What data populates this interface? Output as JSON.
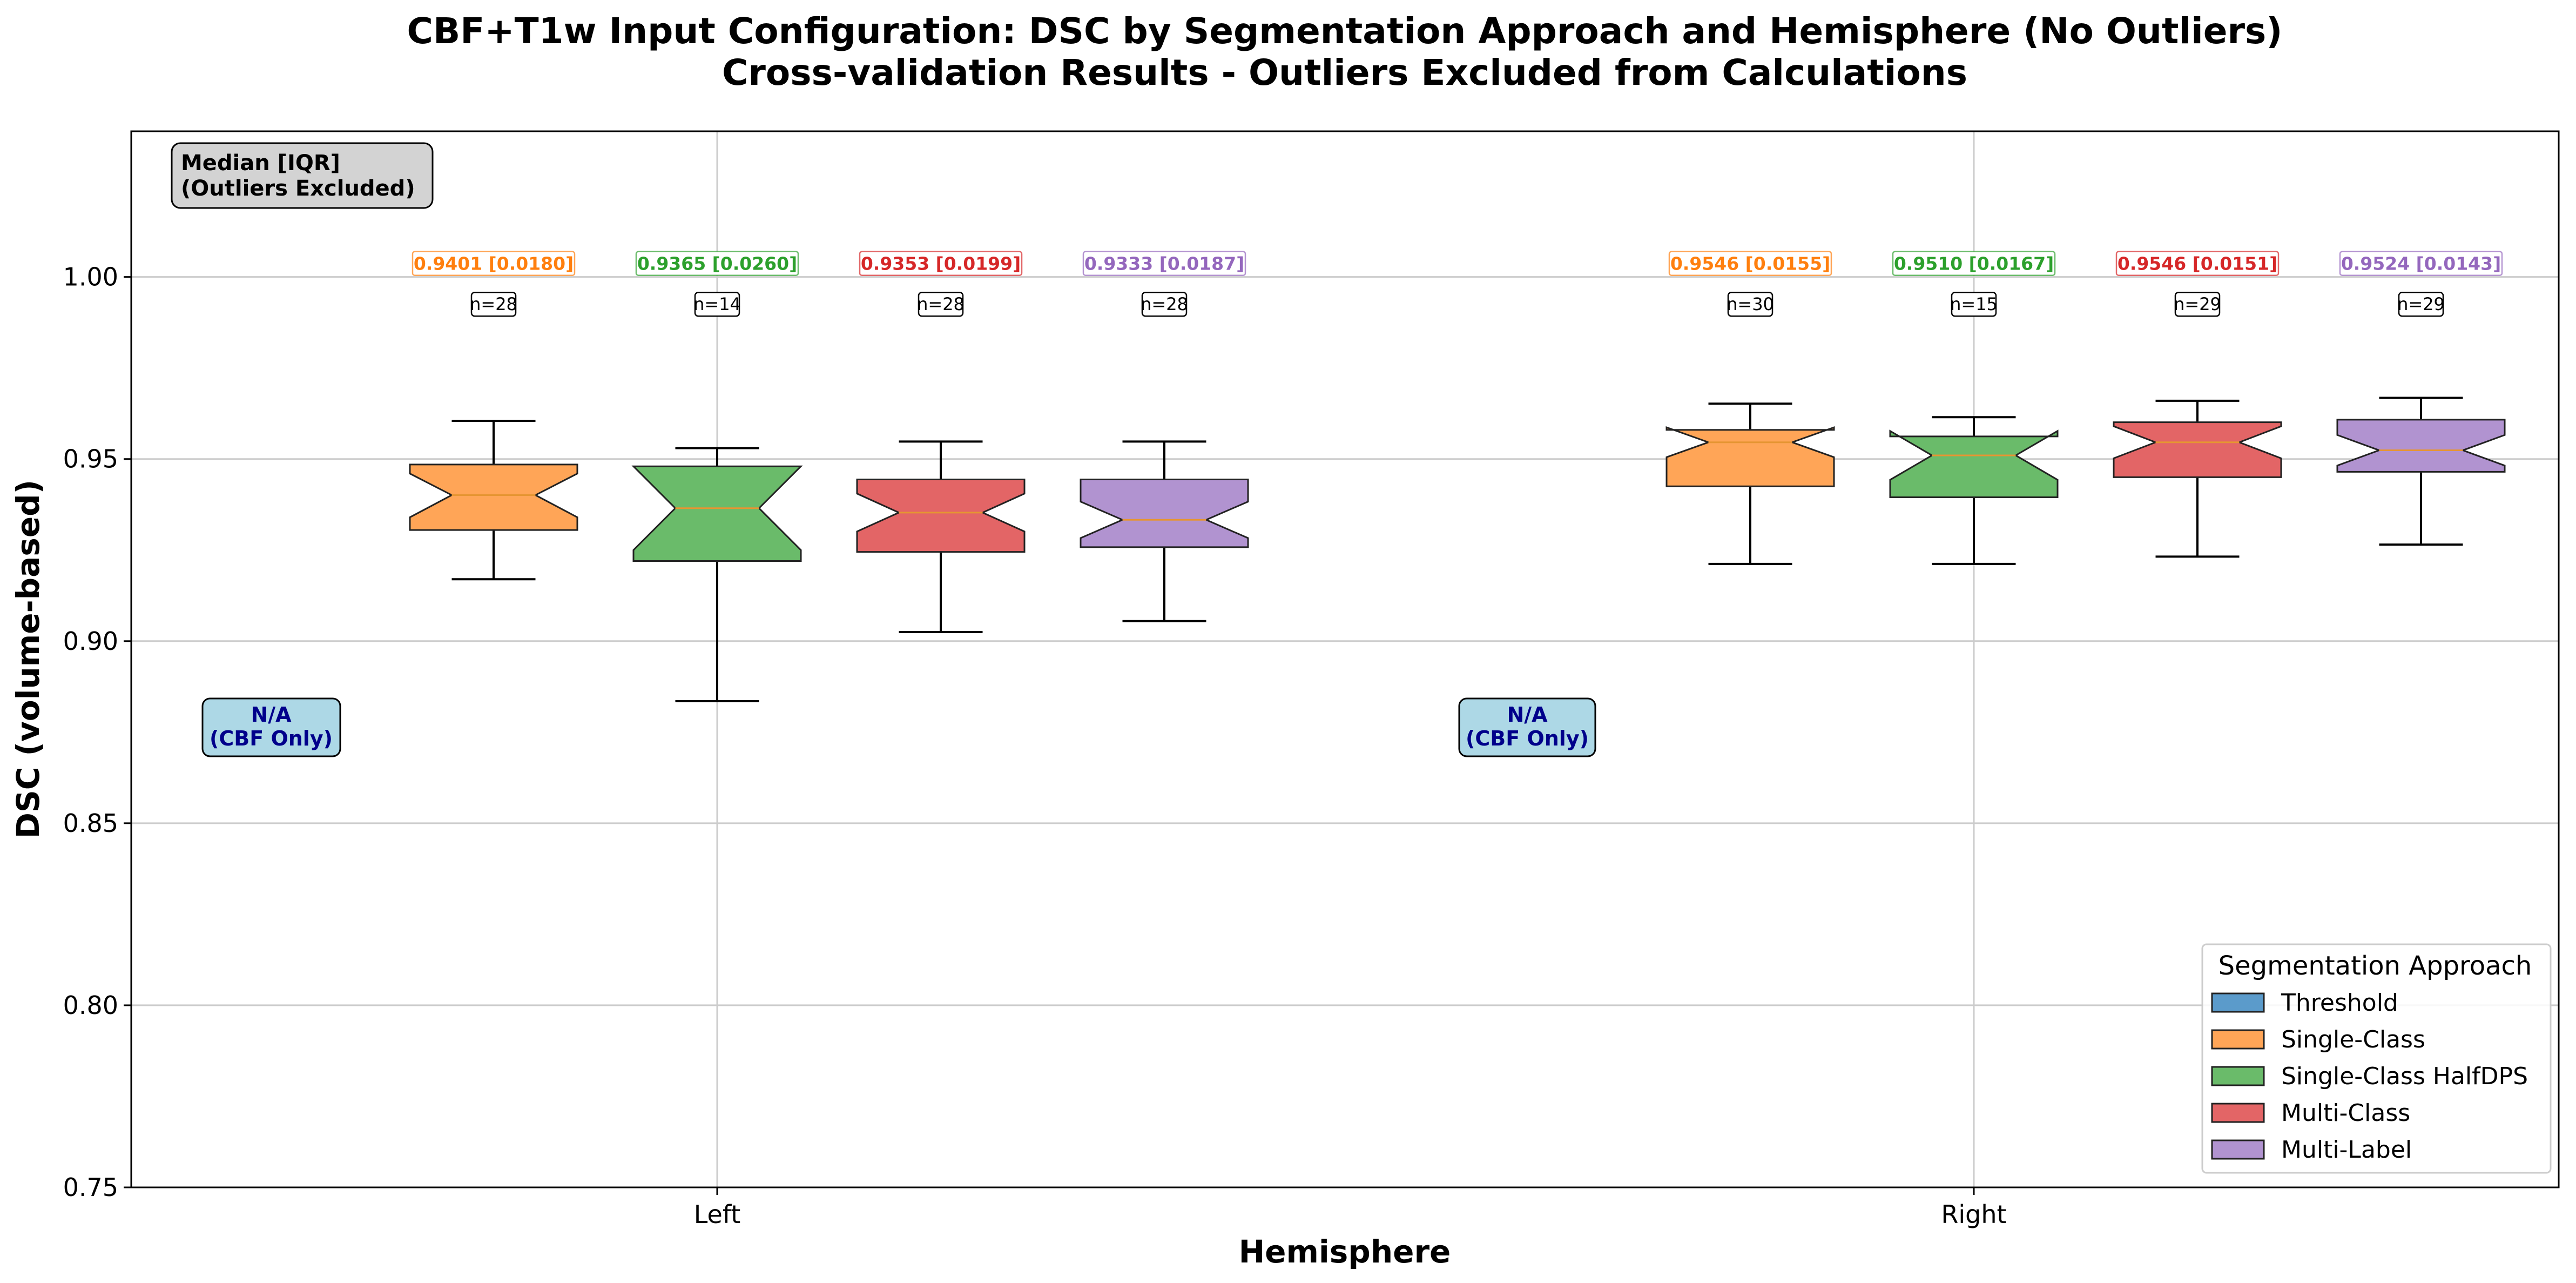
{
  "title": {
    "line1": "CBF+T1w Input Configuration: DSC by Segmentation Approach and Hemisphere (No Outliers)",
    "line2": "Cross-validation Results - Outliers Excluded from Calculations"
  },
  "stats_box": {
    "line1": "Median [IQR]",
    "line2": "(Outliers Excluded)"
  },
  "na_box": {
    "line1": "N/A",
    "line2": "(CBF Only)"
  },
  "colors": {
    "Threshold": "#5b9bcb",
    "Single-Class": "#ffa557",
    "Single-Class HalfDPS": "#6abb6a",
    "Multi-Class": "#e36566",
    "Multi-Label": "#b193d0",
    "ann_Single-Class": "#ff7f0e",
    "ann_Single-Class HalfDPS": "#2ca02c",
    "ann_Multi-Class": "#d62728",
    "ann_Multi-Label": "#9467bd",
    "na_fill": "#add8e6",
    "median_line": "#e69532"
  },
  "chart_data": {
    "type": "box",
    "xlabel": "Hemisphere",
    "ylabel": "DSC (volume-based)",
    "ylim": [
      0.75,
      1.04
    ],
    "yticks": [
      "0.75",
      "0.80",
      "0.85",
      "0.90",
      "0.95",
      "1.00"
    ],
    "categories": [
      "Left",
      "Right"
    ],
    "grid": true,
    "notched": true,
    "legend": {
      "title": "Segmentation Approach",
      "placement": "lower right",
      "entries": [
        "Threshold",
        "Single-Class",
        "Single-Class HalfDPS",
        "Multi-Class",
        "Multi-Label"
      ]
    },
    "series": [
      {
        "name": "Threshold",
        "boxes": [
          null,
          null
        ]
      },
      {
        "name": "Single-Class",
        "boxes": [
          {
            "whislo": 0.917,
            "q1": 0.9305,
            "med": 0.9401,
            "q3": 0.9485,
            "whishi": 0.9605,
            "notch_lo": 0.934,
            "notch_hi": 0.946,
            "label": "0.9401 [0.0180]",
            "n": "n=28"
          },
          {
            "whislo": 0.9212,
            "q1": 0.9425,
            "med": 0.9546,
            "q3": 0.958,
            "whishi": 0.9652,
            "notch_lo": 0.9505,
            "notch_hi": 0.9587,
            "label": "0.9546 [0.0155]",
            "n": "n=30"
          }
        ]
      },
      {
        "name": "Single-Class HalfDPS",
        "boxes": [
          {
            "whislo": 0.8835,
            "q1": 0.922,
            "med": 0.9365,
            "q3": 0.948,
            "whishi": 0.953,
            "notch_lo": 0.925,
            "notch_hi": 0.948,
            "label": "0.9365 [0.0260]",
            "n": "n=14"
          },
          {
            "whislo": 0.9212,
            "q1": 0.9395,
            "med": 0.951,
            "q3": 0.9562,
            "whishi": 0.9615,
            "notch_lo": 0.9443,
            "notch_hi": 0.9577,
            "label": "0.9510 [0.0167]",
            "n": "n=15"
          }
        ]
      },
      {
        "name": "Multi-Class",
        "boxes": [
          {
            "whislo": 0.9025,
            "q1": 0.9245,
            "med": 0.9353,
            "q3": 0.9444,
            "whishi": 0.9548,
            "notch_lo": 0.9301,
            "notch_hi": 0.9405,
            "label": "0.9353 [0.0199]",
            "n": "n=28"
          },
          {
            "whislo": 0.9232,
            "q1": 0.945,
            "med": 0.9546,
            "q3": 0.9601,
            "whishi": 0.966,
            "notch_lo": 0.9502,
            "notch_hi": 0.959,
            "label": "0.9546 [0.0151]",
            "n": "n=29"
          }
        ]
      },
      {
        "name": "Multi-Label",
        "boxes": [
          {
            "whislo": 0.9055,
            "q1": 0.9258,
            "med": 0.9333,
            "q3": 0.9444,
            "whishi": 0.9548,
            "notch_lo": 0.9283,
            "notch_hi": 0.9383,
            "label": "0.9333 [0.0187]",
            "n": "n=28"
          },
          {
            "whislo": 0.9265,
            "q1": 0.9465,
            "med": 0.9524,
            "q3": 0.9608,
            "whishi": 0.9668,
            "notch_lo": 0.9482,
            "notch_hi": 0.9566,
            "label": "0.9524 [0.0143]",
            "n": "n=29"
          }
        ]
      }
    ]
  }
}
